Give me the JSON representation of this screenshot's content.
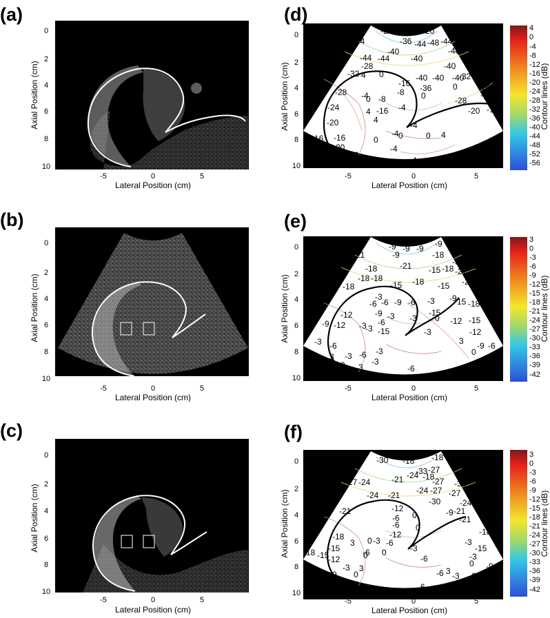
{
  "panels": [
    {
      "id": "a",
      "label": "(a)",
      "kind": "bmode",
      "xlabel": "Lateral Position (cm)",
      "ylabel": "Axial Position (cm)",
      "xticks": [
        "-5",
        "0",
        "5"
      ],
      "yticks": [
        "0",
        "2",
        "4",
        "6",
        "8",
        "10"
      ],
      "rois": false
    },
    {
      "id": "b",
      "label": "(b)",
      "kind": "bmode",
      "xlabel": "Lateral Position (cm)",
      "ylabel": "Axial Position (cm)",
      "xticks": [
        "-5",
        "0",
        "5"
      ],
      "yticks": [
        "0",
        "2",
        "4",
        "6",
        "8",
        "10"
      ],
      "rois": true
    },
    {
      "id": "c",
      "label": "(c)",
      "kind": "bmode",
      "xlabel": "Lateral Position (cm)",
      "ylabel": "Axial Position (cm)",
      "xticks": [
        "-5",
        "0",
        "5"
      ],
      "yticks": [
        "0",
        "2",
        "4",
        "6",
        "8",
        "10"
      ],
      "rois": true
    },
    {
      "id": "d",
      "label": "(d)",
      "kind": "contour",
      "xlabel": "Lateral Position (cm)",
      "ylabel": "Axial Position (cm)",
      "xticks": [
        "-5",
        "0",
        "5"
      ],
      "yticks": [
        "0",
        "2",
        "4",
        "6",
        "8",
        "10"
      ],
      "colorbar": {
        "label": "Contour lines (dB)",
        "ticks": [
          "4",
          "0",
          "-4",
          "-8",
          "-12",
          "-16",
          "-20",
          "-24",
          "-28",
          "-32",
          "-36",
          "-40",
          "-44",
          "-48",
          "-52",
          "-56"
        ]
      },
      "contour_labels": [
        "-20",
        "-20",
        "-44",
        "-36",
        "-44",
        "-48",
        "-44",
        "-40",
        "-40",
        "-44",
        "-44",
        "-40",
        "-32",
        "-40",
        "-28",
        "-32",
        "-40",
        "-32",
        "4",
        "0",
        "-16",
        "-40",
        "-40",
        "-36",
        "0",
        "-8",
        "-24",
        "-28",
        "-28",
        "-4",
        "-28",
        "-16",
        "-24",
        "0",
        "-8",
        "0",
        "-20",
        "-16",
        "-16",
        "4",
        "-4",
        "-20",
        "4",
        "-4",
        "0",
        "-4",
        "0",
        "4",
        "-16",
        "-16",
        "-20",
        "0",
        "-4",
        "-20",
        "-16",
        "20",
        "-4"
      ]
    },
    {
      "id": "e",
      "label": "(e)",
      "kind": "contour",
      "xlabel": "Lateral Position (cm)",
      "ylabel": "Axial Position (cm)",
      "xticks": [
        "-5",
        "0",
        "5"
      ],
      "yticks": [
        "0",
        "2",
        "4",
        "6",
        "8",
        "10"
      ],
      "colorbar": {
        "label": "Contour lines (dB)",
        "ticks": [
          "3",
          "0",
          "-3",
          "-6",
          "-9",
          "-12",
          "-15",
          "-18",
          "-21",
          "-24",
          "-27",
          "-30",
          "-33",
          "-36",
          "-39",
          "-42"
        ]
      },
      "contour_labels": [
        "-9",
        "-9",
        "-9",
        "-9",
        "-21",
        "-9",
        "-18",
        "-30",
        "-18",
        "-21",
        "-15",
        "-18",
        "-27",
        "-18",
        "-18",
        "-18",
        "-15",
        "-24",
        "-18",
        "-15",
        "-3",
        "-9",
        "15",
        "-6",
        "-9",
        "-6",
        "-3",
        "-6",
        "-18",
        "-9",
        "-3",
        "-12",
        "-15",
        "-9",
        "-6",
        "-3",
        "0",
        "-12",
        "-12",
        "-15",
        "-3",
        "-3",
        "-15",
        "-3",
        "-12",
        "-3",
        "-6",
        "-3",
        "3",
        "-9",
        "-3",
        "-6",
        "0",
        "-6",
        "3",
        "-3",
        "3",
        "-6",
        "0"
      ]
    },
    {
      "id": "f",
      "label": "(f)",
      "kind": "contour",
      "xlabel": "Lateral Position (cm)",
      "ylabel": "Axial Position (cm)",
      "xticks": [
        "-5",
        "0",
        "5"
      ],
      "yticks": [
        "0",
        "2",
        "4",
        "6",
        "8",
        "10"
      ],
      "colorbar": {
        "label": "Contour lines (dB)",
        "ticks": [
          "3",
          "0",
          "-3",
          "-6",
          "-9",
          "-12",
          "-15",
          "-18",
          "-21",
          "-24",
          "-27",
          "-30",
          "-33",
          "-36",
          "-39",
          "-42"
        ]
      },
      "contour_labels": [
        "-30",
        "-18",
        "-18",
        "-27",
        "-33",
        "-27",
        "-27",
        "-24",
        "-21",
        "-24",
        "-18",
        "-33",
        "-24",
        "-21",
        "-24",
        "-27",
        "-27",
        "-21",
        "-30",
        "-24",
        "-21",
        "-12",
        "-9",
        "-21",
        "-6",
        "0",
        "-21",
        "-6",
        "0",
        "-18",
        "-18",
        "-12",
        "-15",
        "3",
        "0",
        "-3",
        "-6",
        "-3",
        "-15",
        "-3",
        "0",
        "-18",
        "-6",
        "0",
        "-12",
        "-6",
        "-3",
        "-15",
        "0",
        "-3",
        "3",
        "-9",
        "-9",
        "0",
        "-9",
        "-6",
        "-3",
        "-6",
        "3",
        "-6"
      ]
    }
  ],
  "colors": {
    "colorbar_top": "#7a1a1a",
    "colorbar_red": "#e5201c",
    "colorbar_orange": "#f08b1e",
    "colorbar_yellow": "#f5e62a",
    "colorbar_green": "#9fd86a",
    "colorbar_cyan": "#34c7e8",
    "colorbar_blue": "#2b4fd6",
    "boundary_bmode": "#ffffff",
    "boundary_contour": "#000000",
    "contour_line_warm": "#c98a7a",
    "contour_line_cool": "#8fc9e6"
  }
}
